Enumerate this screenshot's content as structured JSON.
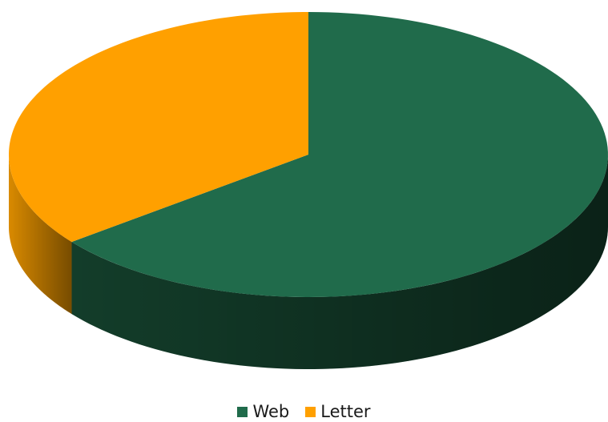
{
  "chart_data": {
    "type": "pie",
    "style": "3d",
    "start_angle_deg": 90,
    "direction": "clockwise",
    "categories": [
      "Web",
      "Letter"
    ],
    "values": [
      64.5,
      35.5
    ],
    "colors": [
      "#206B4B",
      "#FFA000"
    ],
    "side_colors": [
      "#133D2A",
      "#D98A00"
    ],
    "title": "",
    "legend_position": "bottom"
  }
}
